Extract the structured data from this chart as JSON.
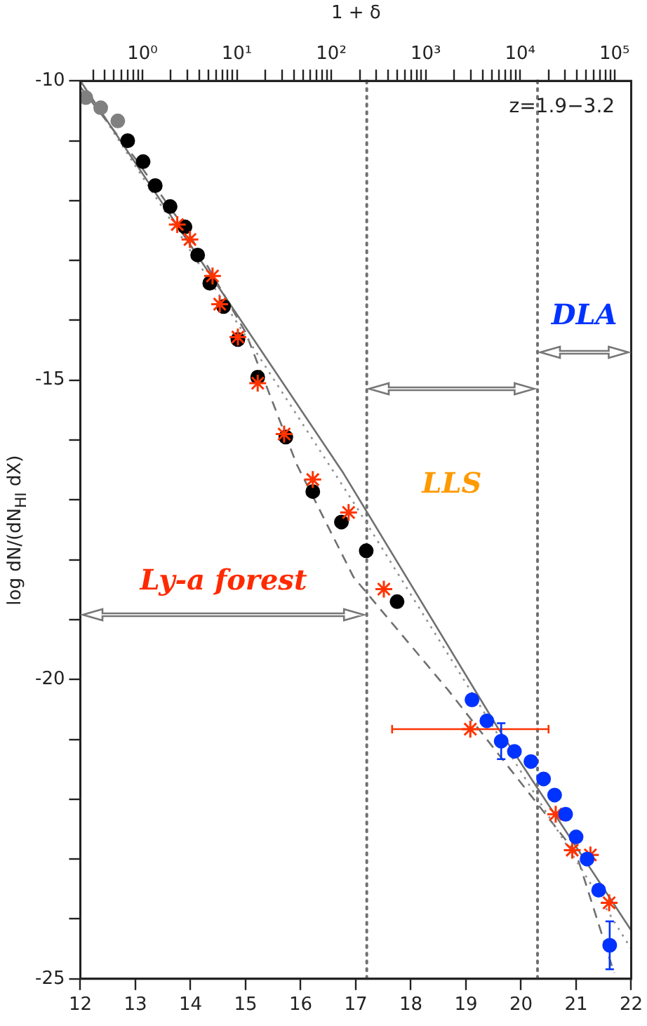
{
  "chart_data": {
    "type": "scatter",
    "x2label": "1 + δ",
    "ylabel": "log dN/(dN$_{HI}$ dX)",
    "xlim": [
      12,
      22
    ],
    "xticks": [
      12,
      13,
      14,
      15,
      16,
      17,
      18,
      19,
      20,
      21,
      22
    ],
    "ylim": [
      -25,
      -10
    ],
    "yticks": [
      -25,
      {
        "value": -24,
        "label": null
      },
      {
        "value": -23,
        "label": null
      },
      {
        "value": -22,
        "label": null
      },
      {
        "value": -21,
        "label": null
      },
      -20,
      {
        "value": -19,
        "label": null
      },
      {
        "value": -18,
        "label": null
      },
      {
        "value": -17,
        "label": null
      },
      {
        "value": -16,
        "label": null
      },
      -15,
      {
        "value": -14,
        "label": null
      },
      {
        "value": -13,
        "label": null
      },
      {
        "value": -12,
        "label": null
      },
      {
        "value": -11,
        "label": null
      },
      -10
    ],
    "log": "x2",
    "x2lim": [
      0.22,
      150000
    ],
    "x2ticks": [
      {
        "value": 0.3,
        "label": null
      },
      {
        "value": 0.4,
        "label": null
      },
      {
        "value": 0.5,
        "label": null
      },
      {
        "value": 0.6,
        "label": null
      },
      {
        "value": 0.7,
        "label": null
      },
      {
        "value": 0.8,
        "label": null
      },
      {
        "value": 0.9,
        "label": null
      },
      {
        "value": 1,
        "label": "10⁰"
      },
      {
        "value": 2,
        "label": null
      },
      {
        "value": 3,
        "label": null
      },
      {
        "value": 4,
        "label": null
      },
      {
        "value": 5,
        "label": null
      },
      {
        "value": 6,
        "label": null
      },
      {
        "value": 7,
        "label": null
      },
      {
        "value": 8,
        "label": null
      },
      {
        "value": 9,
        "label": null
      },
      {
        "value": 10,
        "label": "10¹"
      },
      {
        "value": 20,
        "label": null
      },
      {
        "value": 30,
        "label": null
      },
      {
        "value": 40,
        "label": null
      },
      {
        "value": 50,
        "label": null
      },
      {
        "value": 60,
        "label": null
      },
      {
        "value": 70,
        "label": null
      },
      {
        "value": 80,
        "label": null
      },
      {
        "value": 90,
        "label": null
      },
      {
        "value": 100,
        "label": "10²"
      },
      {
        "value": 200,
        "label": null
      },
      {
        "value": 300,
        "label": null
      },
      {
        "value": 400,
        "label": null
      },
      {
        "value": 500,
        "label": null
      },
      {
        "value": 600,
        "label": null
      },
      {
        "value": 700,
        "label": null
      },
      {
        "value": 800,
        "label": null
      },
      {
        "value": 900,
        "label": null
      },
      {
        "value": 1000,
        "label": "10³"
      },
      {
        "value": 2000,
        "label": null
      },
      {
        "value": 3000,
        "label": null
      },
      {
        "value": 4000,
        "label": null
      },
      {
        "value": 5000,
        "label": null
      },
      {
        "value": 6000,
        "label": null
      },
      {
        "value": 7000,
        "label": null
      },
      {
        "value": 8000,
        "label": null
      },
      {
        "value": 9000,
        "label": null
      },
      {
        "value": 10000,
        "label": "10⁴"
      },
      {
        "value": 20000,
        "label": null
      },
      {
        "value": 30000,
        "label": null
      },
      {
        "value": 40000,
        "label": null
      },
      {
        "value": 50000,
        "label": null
      },
      {
        "value": 60000,
        "label": null
      },
      {
        "value": 70000,
        "label": null
      },
      {
        "value": 80000,
        "label": null
      },
      {
        "value": 90000,
        "label": null
      },
      {
        "value": 100000,
        "label": "10⁵"
      }
    ],
    "grid": false,
    "legend": false,
    "series": [
      {
        "marker": "circle",
        "color": "#808080",
        "x": [
          12.1,
          12.37,
          12.68
        ],
        "values": [
          -10.28,
          -10.45,
          -10.67
        ]
      },
      {
        "marker": "circle",
        "color": "#000000",
        "x": [
          12.86,
          13.14,
          13.36,
          13.63,
          13.9,
          14.13,
          14.35,
          14.6,
          14.86,
          15.22,
          15.73,
          16.22,
          16.74,
          17.19,
          17.75
        ],
        "values": [
          -11.0,
          -11.35,
          -11.75,
          -12.1,
          -12.44,
          -12.91,
          -13.38,
          -13.77,
          -14.32,
          -14.95,
          -15.95,
          -16.86,
          -17.37,
          -17.85,
          -18.7
        ]
      },
      {
        "marker": "cross",
        "color": "#ff3300",
        "x": [
          13.76,
          13.99,
          14.4,
          14.53,
          14.86,
          15.22,
          15.7,
          16.22,
          16.87,
          17.51,
          19.08,
          20.63,
          20.93,
          21.26,
          21.6
        ],
        "values": [
          -12.4,
          -12.65,
          -13.26,
          -13.73,
          -14.28,
          -15.05,
          -15.9,
          -16.66,
          -17.21,
          -18.49,
          -20.83,
          -22.25,
          -22.85,
          -22.93,
          -23.73
        ],
        "xerrors": [
          null,
          null,
          null,
          null,
          null,
          null,
          null,
          null,
          null,
          null,
          1.42,
          null,
          null,
          null,
          null
        ]
      },
      {
        "marker": "circle",
        "color": "#0033ff",
        "x": [
          19.11,
          19.38,
          19.64,
          19.88,
          20.18,
          20.41,
          20.61,
          20.81,
          21.0,
          21.2,
          21.41,
          21.61
        ],
        "values": [
          -20.34,
          -20.69,
          -21.03,
          -21.2,
          -21.37,
          -21.66,
          -21.93,
          -22.25,
          -22.63,
          -23.0,
          -23.52,
          -24.44
        ],
        "errors": [
          null,
          null,
          0.3,
          null,
          null,
          null,
          null,
          null,
          null,
          null,
          null,
          0.4
        ]
      },
      {
        "type": "line",
        "marker": "none",
        "line_style": "solid",
        "color": "#707070",
        "x": [
          12,
          16.78,
          19.58,
          22
        ],
        "values": [
          -10,
          -16.56,
          -20.81,
          -24.19
        ]
      },
      {
        "type": "line",
        "marker": "none",
        "line_style": "dotted",
        "color": "#909090",
        "x": [
          12,
          17,
          19.5,
          22
        ],
        "values": [
          -10,
          -17.1,
          -20.8,
          -24.5
        ]
      },
      {
        "type": "line",
        "marker": "none",
        "line_style": "dashed",
        "color": "#707070",
        "x": [
          12,
          13,
          14,
          15,
          15.93,
          16.96,
          18.68,
          21,
          21.69
        ],
        "values": [
          -10.1,
          -11.3,
          -12.6,
          -14.2,
          -16.41,
          -18.29,
          -20.18,
          -22.9,
          -24.9
        ]
      }
    ],
    "ref_lines": [
      {
        "axis": "x",
        "value": 17.2,
        "line_style": "dotted",
        "color": "#707070"
      },
      {
        "axis": "x",
        "value": 20.3,
        "line_style": "dotted",
        "color": "#707070"
      }
    ],
    "annotations": [
      "Ly-a forest",
      "LLS",
      "DLA",
      "z=1.9−3.2"
    ]
  }
}
